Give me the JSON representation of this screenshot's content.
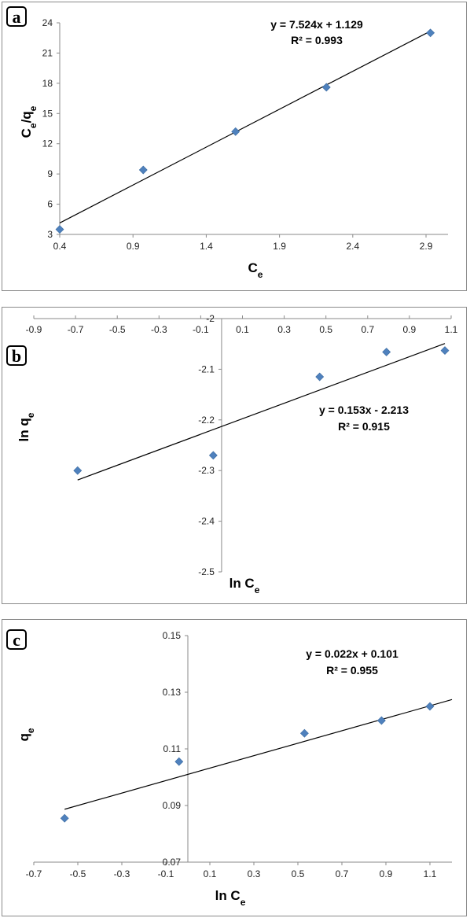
{
  "chart_data": [
    {
      "panel": "a",
      "type": "scatter",
      "x": [
        0.4,
        0.97,
        1.6,
        2.22,
        2.93
      ],
      "y": [
        3.5,
        9.4,
        13.2,
        17.6,
        23.0
      ],
      "xlim": [
        0.4,
        3.05
      ],
      "ylim": [
        3,
        24
      ],
      "xticks": [
        "0.4",
        "0.9",
        "1.4",
        "1.9",
        "2.4",
        "2.9"
      ],
      "yticks": [
        "3",
        "6",
        "9",
        "12",
        "15",
        "18",
        "21",
        "24"
      ],
      "xlabel": "C",
      "xlabel_sub": "e",
      "ylabel": "C",
      "ylabel_sub": "e",
      "ylabel_mid": "/q",
      "ylabel_sub2": "e",
      "trendline": {
        "slope": 7.524,
        "intercept": 1.129,
        "x_from": 0.4,
        "x_to": 2.93
      },
      "equation": "y = 7.524x + 1.129",
      "r2": "R² = 0.993",
      "grid": false,
      "marker_color": "#4f81bd"
    },
    {
      "panel": "b",
      "type": "scatter",
      "x": [
        -0.69,
        -0.04,
        0.47,
        0.79,
        1.07
      ],
      "y": [
        -2.3,
        -2.27,
        -2.115,
        -2.066,
        -2.063
      ],
      "xlim": [
        -0.9,
        1.1
      ],
      "ylim": [
        -2.5,
        -2.0
      ],
      "xticks": [
        "-0.9",
        "-0.7",
        "-0.5",
        "-0.3",
        "-0.1",
        "0.1",
        "0.3",
        "0.5",
        "0.7",
        "0.9",
        "1.1"
      ],
      "yticks": [
        "-2",
        "-2.1",
        "-2.2",
        "-2.3",
        "-2.4",
        "-2.5"
      ],
      "xlabel": "ln C",
      "xlabel_sub": "e",
      "ylabel": "ln q",
      "ylabel_sub": "e",
      "trendline": {
        "slope": 0.153,
        "intercept": -2.213,
        "x_from": -0.69,
        "x_to": 1.07
      },
      "equation": "y = 0.153x - 2.213",
      "r2": "R² = 0.915",
      "grid": false,
      "marker_color": "#4f81bd"
    },
    {
      "panel": "c",
      "type": "scatter",
      "x": [
        -0.56,
        -0.04,
        0.53,
        0.88,
        1.1
      ],
      "y": [
        0.0855,
        0.1055,
        0.1155,
        0.12,
        0.125
      ],
      "xlim": [
        -0.7,
        1.2
      ],
      "ylim": [
        0.07,
        0.15
      ],
      "xticks": [
        "-0.7",
        "-0.5",
        "-0.3",
        "-0.1",
        "0.1",
        "0.3",
        "0.5",
        "0.7",
        "0.9",
        "1.1"
      ],
      "yticks": [
        "0.07",
        "0.09",
        "0.11",
        "0.13",
        "0.15"
      ],
      "xlabel": "ln C",
      "xlabel_sub": "e",
      "ylabel": "q",
      "ylabel_sub": "e",
      "trendline": {
        "slope": 0.022,
        "intercept": 0.101,
        "x_from": -0.56,
        "x_to": 1.2
      },
      "equation": "y = 0.022x + 0.101",
      "r2": "R² = 0.955",
      "grid": false,
      "marker_color": "#4f81bd"
    }
  ],
  "labels": {
    "a": "a",
    "b": "b",
    "c": "c"
  }
}
